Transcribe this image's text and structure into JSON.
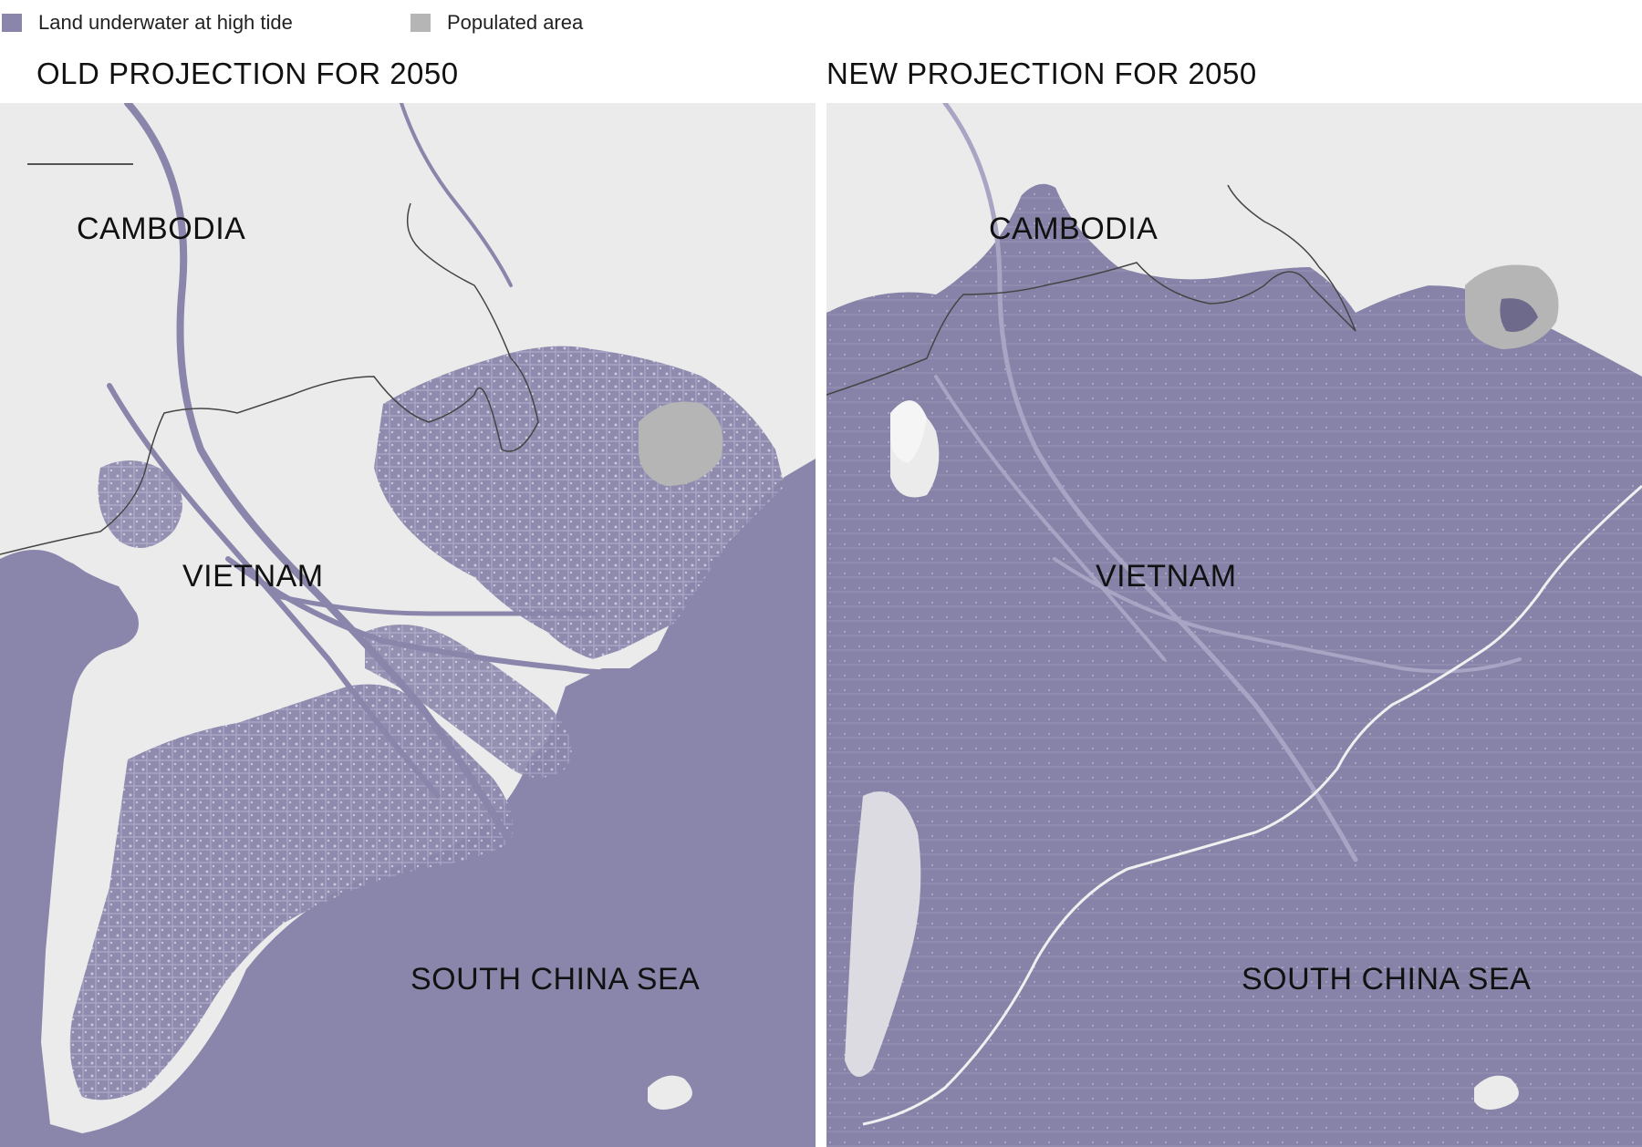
{
  "colors": {
    "underwater": "#8a86ab",
    "populated": "#b5b5b5",
    "land": "#ebebeb",
    "border": "#444444"
  },
  "legend": {
    "underwater_label": "Land underwater at high tide",
    "populated_label": "Populated area"
  },
  "panels": [
    {
      "title": "OLD PROJECTION FOR 2050",
      "labels": {
        "cambodia": "CAMBODIA",
        "vietnam": "VIETNAM",
        "sea": "SOUTH CHINA SEA"
      }
    },
    {
      "title": "NEW PROJECTION FOR 2050",
      "labels": {
        "cambodia": "CAMBODIA",
        "vietnam": "VIETNAM",
        "sea": "SOUTH CHINA SEA"
      }
    }
  ]
}
